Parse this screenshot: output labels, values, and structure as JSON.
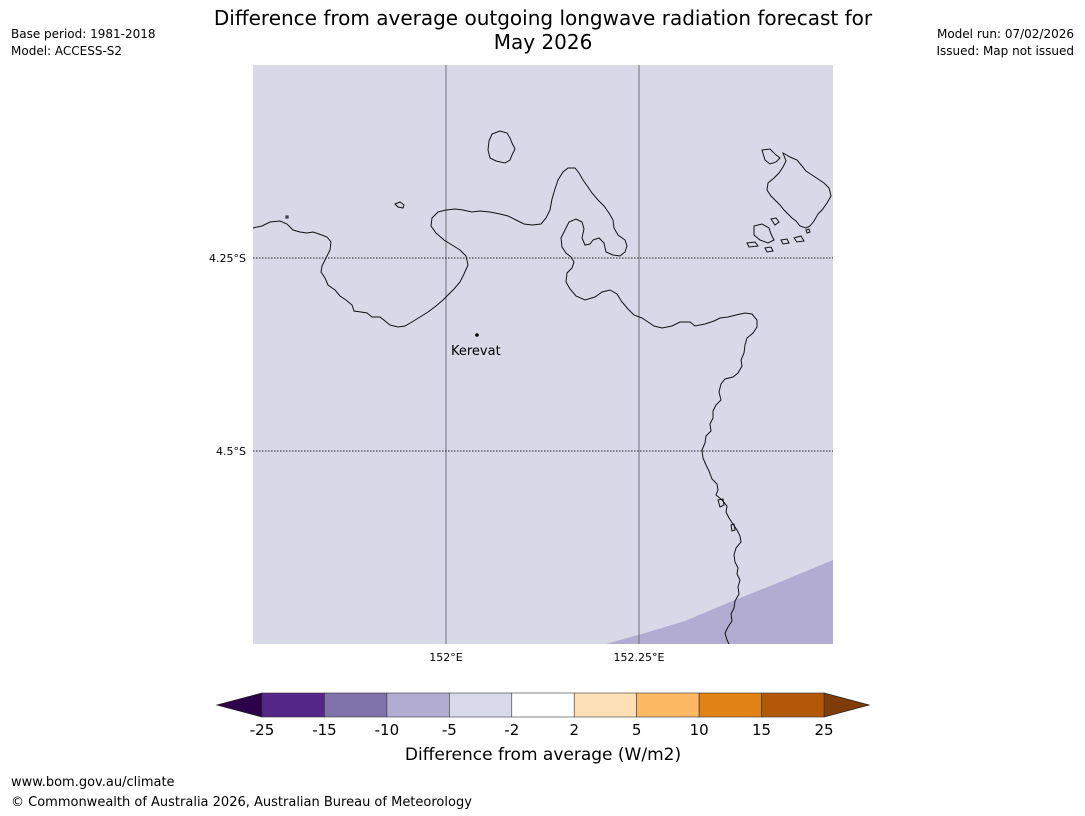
{
  "header": {
    "title_line1": "Difference from average outgoing longwave radiation forecast for",
    "title_line2": "May 2026",
    "base_period": "Base period: 1981-2018",
    "model": "Model: ACCESS-S2",
    "model_run": "Model run: 07/02/2026",
    "issued": "Issued: Map not issued"
  },
  "map": {
    "background_color": "#d8d8e9",
    "anomaly_color": "#b2abd2",
    "lat_labels": [
      "4.25°S",
      "4.5°S"
    ],
    "lon_labels": [
      "152°E",
      "152.25°E"
    ],
    "place": {
      "name": "Kerevat"
    }
  },
  "colorbar": {
    "title": "Difference from average (W/m2)",
    "tick_labels": [
      "-25",
      "-15",
      "-10",
      "-5",
      "-2",
      "2",
      "5",
      "10",
      "15",
      "25"
    ],
    "bin_colors": [
      "#542788",
      "#8073ac",
      "#b2abd2",
      "#d8daeb",
      "#ffffff",
      "#fee0b6",
      "#fdb863",
      "#e08214",
      "#b35806"
    ],
    "under_color": "#2d004b",
    "over_color": "#7f3b08"
  },
  "footer": {
    "url": "www.bom.gov.au/climate",
    "copyright": "© Commonwealth of Australia 2026, Australian Bureau of Meteorology"
  }
}
